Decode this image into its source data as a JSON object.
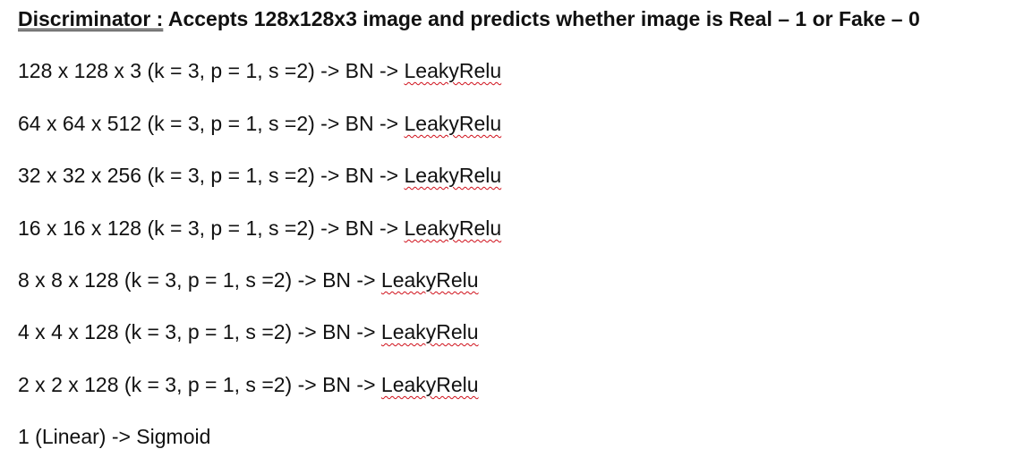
{
  "title": {
    "label": "Discriminator :",
    "description": " Accepts 128x128x3 image and predicts whether image is Real – 1 or Fake – 0"
  },
  "layers": [
    {
      "prefix": "128 x 128 x 3 (k = 3, p = 1, s =2) -> BN -> ",
      "activation": "LeakyRelu"
    },
    {
      "prefix": "64 x 64 x 512 (k = 3, p = 1, s =2) -> BN -> ",
      "activation": "LeakyRelu"
    },
    {
      "prefix": "32 x 32 x 256 (k = 3, p = 1, s =2) -> BN -> ",
      "activation": "LeakyRelu"
    },
    {
      "prefix": "16 x 16 x 128 (k = 3, p = 1, s =2) -> BN -> ",
      "activation": "LeakyRelu"
    },
    {
      "prefix": "8 x 8 x 128 (k = 3, p = 1, s =2) -> BN -> ",
      "activation": "LeakyRelu"
    },
    {
      "prefix": "4 x 4 x 128 (k = 3, p = 1, s =2) -> BN -> ",
      "activation": "LeakyRelu"
    },
    {
      "prefix": "2 x 2 x 128 (k = 3, p = 1, s =2) -> BN -> ",
      "activation": "LeakyRelu"
    }
  ],
  "output_layer": "1 (Linear) -> Sigmoid",
  "colors": {
    "text": "#111111",
    "spellcheck_underline": "#d0101a"
  }
}
